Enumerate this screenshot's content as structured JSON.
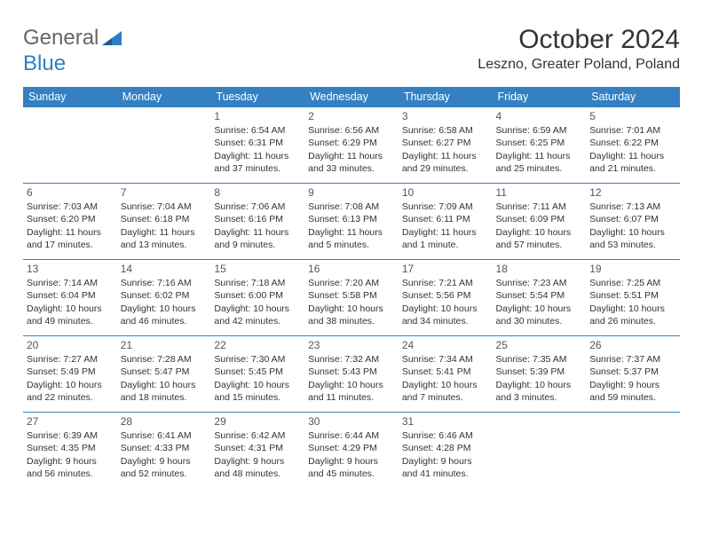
{
  "logo": {
    "text_general": "General",
    "text_blue": "Blue"
  },
  "header": {
    "month_title": "October 2024",
    "location": "Leszno, Greater Poland, Poland"
  },
  "colors": {
    "header_bg": "#3380c2",
    "header_text": "#ffffff",
    "border": "#3380c2",
    "text": "#333333",
    "logo_gray": "#666666",
    "logo_blue": "#2d7fc4"
  },
  "day_headers": [
    "Sunday",
    "Monday",
    "Tuesday",
    "Wednesday",
    "Thursday",
    "Friday",
    "Saturday"
  ],
  "weeks": [
    [
      null,
      null,
      {
        "n": "1",
        "sr": "Sunrise: 6:54 AM",
        "ss": "Sunset: 6:31 PM",
        "dl": "Daylight: 11 hours and 37 minutes."
      },
      {
        "n": "2",
        "sr": "Sunrise: 6:56 AM",
        "ss": "Sunset: 6:29 PM",
        "dl": "Daylight: 11 hours and 33 minutes."
      },
      {
        "n": "3",
        "sr": "Sunrise: 6:58 AM",
        "ss": "Sunset: 6:27 PM",
        "dl": "Daylight: 11 hours and 29 minutes."
      },
      {
        "n": "4",
        "sr": "Sunrise: 6:59 AM",
        "ss": "Sunset: 6:25 PM",
        "dl": "Daylight: 11 hours and 25 minutes."
      },
      {
        "n": "5",
        "sr": "Sunrise: 7:01 AM",
        "ss": "Sunset: 6:22 PM",
        "dl": "Daylight: 11 hours and 21 minutes."
      }
    ],
    [
      {
        "n": "6",
        "sr": "Sunrise: 7:03 AM",
        "ss": "Sunset: 6:20 PM",
        "dl": "Daylight: 11 hours and 17 minutes."
      },
      {
        "n": "7",
        "sr": "Sunrise: 7:04 AM",
        "ss": "Sunset: 6:18 PM",
        "dl": "Daylight: 11 hours and 13 minutes."
      },
      {
        "n": "8",
        "sr": "Sunrise: 7:06 AM",
        "ss": "Sunset: 6:16 PM",
        "dl": "Daylight: 11 hours and 9 minutes."
      },
      {
        "n": "9",
        "sr": "Sunrise: 7:08 AM",
        "ss": "Sunset: 6:13 PM",
        "dl": "Daylight: 11 hours and 5 minutes."
      },
      {
        "n": "10",
        "sr": "Sunrise: 7:09 AM",
        "ss": "Sunset: 6:11 PM",
        "dl": "Daylight: 11 hours and 1 minute."
      },
      {
        "n": "11",
        "sr": "Sunrise: 7:11 AM",
        "ss": "Sunset: 6:09 PM",
        "dl": "Daylight: 10 hours and 57 minutes."
      },
      {
        "n": "12",
        "sr": "Sunrise: 7:13 AM",
        "ss": "Sunset: 6:07 PM",
        "dl": "Daylight: 10 hours and 53 minutes."
      }
    ],
    [
      {
        "n": "13",
        "sr": "Sunrise: 7:14 AM",
        "ss": "Sunset: 6:04 PM",
        "dl": "Daylight: 10 hours and 49 minutes."
      },
      {
        "n": "14",
        "sr": "Sunrise: 7:16 AM",
        "ss": "Sunset: 6:02 PM",
        "dl": "Daylight: 10 hours and 46 minutes."
      },
      {
        "n": "15",
        "sr": "Sunrise: 7:18 AM",
        "ss": "Sunset: 6:00 PM",
        "dl": "Daylight: 10 hours and 42 minutes."
      },
      {
        "n": "16",
        "sr": "Sunrise: 7:20 AM",
        "ss": "Sunset: 5:58 PM",
        "dl": "Daylight: 10 hours and 38 minutes."
      },
      {
        "n": "17",
        "sr": "Sunrise: 7:21 AM",
        "ss": "Sunset: 5:56 PM",
        "dl": "Daylight: 10 hours and 34 minutes."
      },
      {
        "n": "18",
        "sr": "Sunrise: 7:23 AM",
        "ss": "Sunset: 5:54 PM",
        "dl": "Daylight: 10 hours and 30 minutes."
      },
      {
        "n": "19",
        "sr": "Sunrise: 7:25 AM",
        "ss": "Sunset: 5:51 PM",
        "dl": "Daylight: 10 hours and 26 minutes."
      }
    ],
    [
      {
        "n": "20",
        "sr": "Sunrise: 7:27 AM",
        "ss": "Sunset: 5:49 PM",
        "dl": "Daylight: 10 hours and 22 minutes."
      },
      {
        "n": "21",
        "sr": "Sunrise: 7:28 AM",
        "ss": "Sunset: 5:47 PM",
        "dl": "Daylight: 10 hours and 18 minutes."
      },
      {
        "n": "22",
        "sr": "Sunrise: 7:30 AM",
        "ss": "Sunset: 5:45 PM",
        "dl": "Daylight: 10 hours and 15 minutes."
      },
      {
        "n": "23",
        "sr": "Sunrise: 7:32 AM",
        "ss": "Sunset: 5:43 PM",
        "dl": "Daylight: 10 hours and 11 minutes."
      },
      {
        "n": "24",
        "sr": "Sunrise: 7:34 AM",
        "ss": "Sunset: 5:41 PM",
        "dl": "Daylight: 10 hours and 7 minutes."
      },
      {
        "n": "25",
        "sr": "Sunrise: 7:35 AM",
        "ss": "Sunset: 5:39 PM",
        "dl": "Daylight: 10 hours and 3 minutes."
      },
      {
        "n": "26",
        "sr": "Sunrise: 7:37 AM",
        "ss": "Sunset: 5:37 PM",
        "dl": "Daylight: 9 hours and 59 minutes."
      }
    ],
    [
      {
        "n": "27",
        "sr": "Sunrise: 6:39 AM",
        "ss": "Sunset: 4:35 PM",
        "dl": "Daylight: 9 hours and 56 minutes."
      },
      {
        "n": "28",
        "sr": "Sunrise: 6:41 AM",
        "ss": "Sunset: 4:33 PM",
        "dl": "Daylight: 9 hours and 52 minutes."
      },
      {
        "n": "29",
        "sr": "Sunrise: 6:42 AM",
        "ss": "Sunset: 4:31 PM",
        "dl": "Daylight: 9 hours and 48 minutes."
      },
      {
        "n": "30",
        "sr": "Sunrise: 6:44 AM",
        "ss": "Sunset: 4:29 PM",
        "dl": "Daylight: 9 hours and 45 minutes."
      },
      {
        "n": "31",
        "sr": "Sunrise: 6:46 AM",
        "ss": "Sunset: 4:28 PM",
        "dl": "Daylight: 9 hours and 41 minutes."
      },
      null,
      null
    ]
  ]
}
